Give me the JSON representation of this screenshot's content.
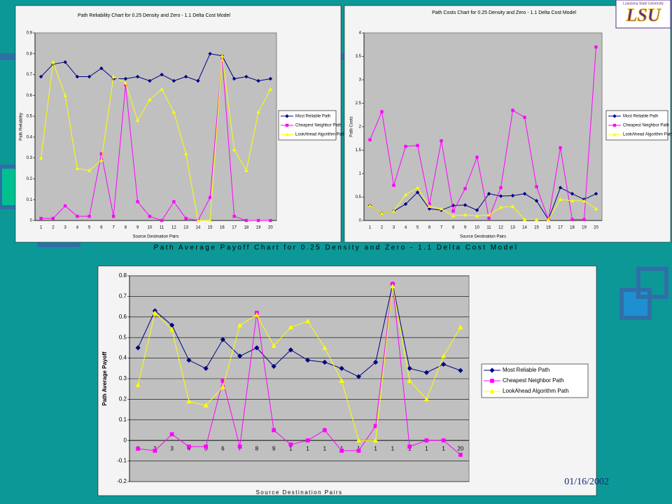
{
  "chart_data": [
    {
      "type": "line",
      "title": "Path Reliability Chart for 0.25 Density and Zero - 1.1 Delta Cost Model",
      "x_label": "Source Destination Pairs",
      "y_label": "Path Reliability",
      "categories": [
        "1",
        "2",
        "3",
        "4",
        "5",
        "6",
        "7",
        "8",
        "9",
        "10",
        "11",
        "12",
        "13",
        "14",
        "15",
        "16",
        "17",
        "18",
        "19",
        "20"
      ],
      "ylim": [
        0,
        0.9
      ],
      "yticks": [
        0,
        0.1,
        0.2,
        0.3,
        0.4,
        0.5,
        0.6,
        0.7,
        0.8,
        0.9
      ],
      "grid": false,
      "legend": "right",
      "series": [
        {
          "name": "Most Reliable Path",
          "color": "#000080",
          "marker": "diamond",
          "values": [
            0.69,
            0.75,
            0.76,
            0.69,
            0.69,
            0.73,
            0.68,
            0.68,
            0.69,
            0.67,
            0.7,
            0.67,
            0.69,
            0.67,
            0.8,
            0.79,
            0.68,
            0.69,
            0.67,
            0.68
          ]
        },
        {
          "name": "Cheapest Neighbor Path",
          "color": "#ff00ff",
          "marker": "square",
          "values": [
            0.01,
            0.01,
            0.07,
            0.02,
            0.02,
            0.32,
            0.02,
            0.65,
            0.09,
            0.02,
            0.0,
            0.09,
            0.01,
            0.0,
            0.11,
            0.78,
            0.02,
            0.0,
            0.0,
            0.0
          ]
        },
        {
          "name": "LookAhead Algorithm Path",
          "color": "#ffff00",
          "marker": "triangle",
          "values": [
            0.3,
            0.76,
            0.6,
            0.25,
            0.24,
            0.29,
            0.69,
            0.66,
            0.48,
            0.58,
            0.63,
            0.52,
            0.32,
            0.0,
            0.0,
            0.79,
            0.34,
            0.24,
            0.52,
            0.63
          ]
        }
      ]
    },
    {
      "type": "line",
      "title": "Path Costs Chart for 0.25 Density and Zero - 1.1 Delta Cost Model",
      "x_label": "Source Destination Pairs",
      "y_label": "Path Costs",
      "categories": [
        "1",
        "2",
        "3",
        "4",
        "5",
        "6",
        "7",
        "8",
        "9",
        "10",
        "11",
        "12",
        "13",
        "14",
        "15",
        "16",
        "17",
        "18",
        "19",
        "20"
      ],
      "ylim": [
        0,
        4
      ],
      "yticks": [
        0,
        0.5,
        1,
        1.5,
        2,
        2.5,
        3,
        3.5,
        4
      ],
      "grid": false,
      "legend": "right",
      "series": [
        {
          "name": "Most Reliable Path",
          "color": "#000080",
          "marker": "diamond",
          "values": [
            0.32,
            0.15,
            0.2,
            0.35,
            0.6,
            0.25,
            0.22,
            0.32,
            0.33,
            0.22,
            0.57,
            0.52,
            0.53,
            0.57,
            0.42,
            0.02,
            0.7,
            0.57,
            0.45,
            0.57
          ]
        },
        {
          "name": "Cheapest Neighbor Path",
          "color": "#ff00ff",
          "marker": "square",
          "values": [
            1.72,
            2.32,
            0.75,
            1.58,
            1.6,
            0.35,
            1.7,
            0.2,
            0.68,
            1.35,
            0.05,
            0.7,
            2.35,
            2.2,
            0.72,
            0.02,
            1.55,
            0.02,
            0.02,
            3.7
          ]
        },
        {
          "name": "LookAhead Algorithm Path",
          "color": "#ffff00",
          "marker": "triangle",
          "values": [
            0.32,
            0.15,
            0.2,
            0.55,
            0.7,
            0.3,
            0.25,
            0.1,
            0.12,
            0.1,
            0.12,
            0.28,
            0.3,
            0.02,
            0.02,
            0.02,
            0.45,
            0.42,
            0.42,
            0.25
          ]
        }
      ]
    },
    {
      "type": "line",
      "title": "Path Average Payoff Chart for 0.25 Density and Zero - 1.1 Delta Cost Model",
      "x_label": "Source Destination Pairs",
      "y_label": "Path Average Payoff",
      "categories": [
        "1",
        "2",
        "3",
        "4",
        "5",
        "6",
        "7",
        "8",
        "9",
        "1",
        "1",
        "1",
        "1",
        "1",
        "1",
        "1",
        "1",
        "1",
        "1",
        "20"
      ],
      "ylim": [
        -0.2,
        0.8
      ],
      "yticks": [
        -0.2,
        -0.1,
        0,
        0.1,
        0.2,
        0.3,
        0.4,
        0.5,
        0.6,
        0.7,
        0.8
      ],
      "grid": true,
      "legend": "right",
      "series": [
        {
          "name": "Most Reliable Path",
          "color": "#000080",
          "marker": "diamond",
          "values": [
            0.45,
            0.63,
            0.56,
            0.39,
            0.35,
            0.49,
            0.41,
            0.45,
            0.36,
            0.44,
            0.39,
            0.38,
            0.35,
            0.31,
            0.38,
            0.76,
            0.35,
            0.33,
            0.37,
            0.34
          ]
        },
        {
          "name": "Cheapest Neighbor Path",
          "color": "#ff00ff",
          "marker": "square",
          "values": [
            -0.04,
            -0.05,
            0.03,
            -0.03,
            -0.03,
            0.29,
            -0.03,
            0.62,
            0.05,
            -0.02,
            0.0,
            0.05,
            -0.05,
            -0.05,
            0.07,
            0.76,
            -0.03,
            0.0,
            0.0,
            -0.07
          ]
        },
        {
          "name": "LookAhead Algorithm Path",
          "color": "#ffff00",
          "marker": "triangle",
          "values": [
            0.27,
            0.62,
            0.54,
            0.19,
            0.17,
            0.26,
            0.56,
            0.61,
            0.46,
            0.55,
            0.58,
            0.45,
            0.29,
            0.0,
            0.0,
            0.75,
            0.29,
            0.2,
            0.41,
            0.55
          ]
        }
      ]
    }
  ],
  "date": "01/16/2002",
  "logo": {
    "caption": "Louisiana State University",
    "text": "LSU"
  }
}
